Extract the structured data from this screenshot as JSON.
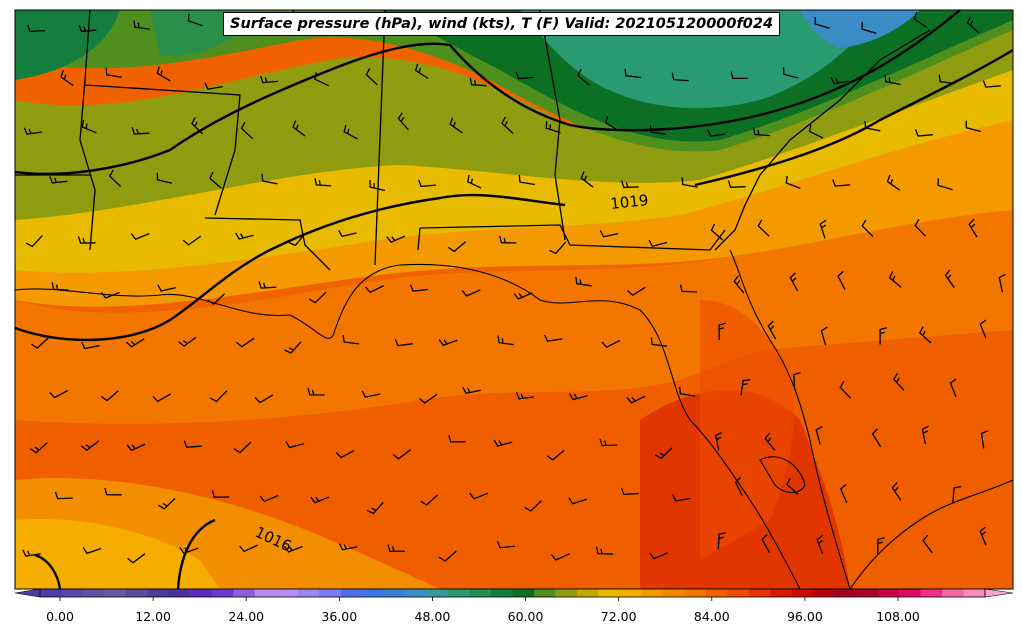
{
  "title": "Surface pressure (hPa), wind (kts), T (F) Valid: 202105120000f024",
  "colorbar": {
    "min": -6,
    "max": 123,
    "step": 3,
    "tick_values": [
      0,
      12,
      24,
      36,
      48,
      60,
      72,
      84,
      96,
      108
    ],
    "tick_labels": [
      "0.00",
      "12.00",
      "24.00",
      "36.00",
      "48.00",
      "60.00",
      "72.00",
      "84.00",
      "96.00",
      "108.00"
    ],
    "colors": [
      "#4a3fa8",
      "#5546b2",
      "#6050a6",
      "#6a58a3",
      "#5b4aa0",
      "#4e3a9a",
      "#4a2fa0",
      "#5a2ec0",
      "#6a3ad0",
      "#8f5ee0",
      "#b98af0",
      "#b78ef5",
      "#9a86f7",
      "#7b7af8",
      "#4f6ef2",
      "#3d76ea",
      "#3b80d8",
      "#3a8cc4",
      "#349a9c",
      "#2a9a72",
      "#1f8f55",
      "#137e3e",
      "#0b7024",
      "#4f8f1e",
      "#8f9c10",
      "#c4a804",
      "#e8ba00",
      "#f5ad00",
      "#f49a00",
      "#f38800",
      "#f27600",
      "#f06200",
      "#ec4c00",
      "#e53400",
      "#d81a00",
      "#c80a00",
      "#b4000e",
      "#a0001c",
      "#a8002e",
      "#c20048",
      "#dc0a66",
      "#ee3188",
      "#f5689f",
      "#f88cbd"
    ]
  },
  "pressure_contours": [
    {
      "value": 1019,
      "label": "1019"
    },
    {
      "value": 1016,
      "label": "1016"
    }
  ]
}
